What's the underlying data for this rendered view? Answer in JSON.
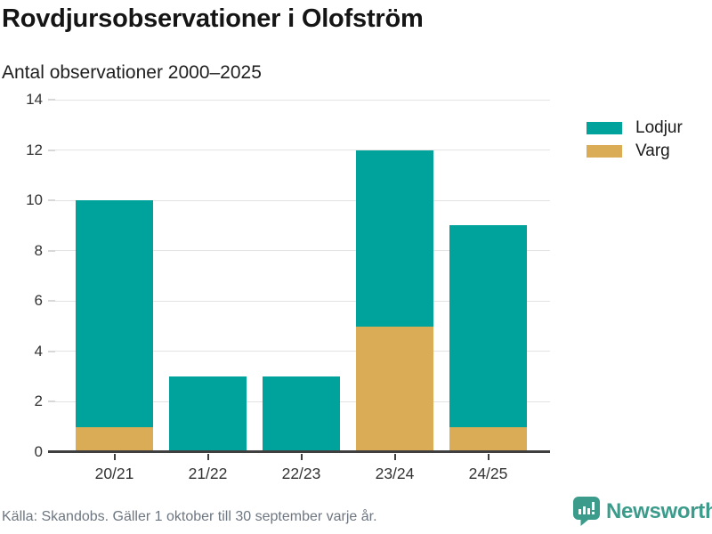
{
  "header": {
    "title": "Rovdjursobservationer i Olofström",
    "subtitle": "Antal observationer 2000–2025"
  },
  "chart_data": {
    "type": "bar",
    "stacked": true,
    "title": "Rovdjursobservationer i Olofström",
    "subtitle": "Antal observationer 2000–2025",
    "categories": [
      "20/21",
      "21/22",
      "22/23",
      "23/24",
      "24/25"
    ],
    "series": [
      {
        "name": "Lodjur",
        "color": "#00a39b",
        "values": [
          9,
          3,
          3,
          7,
          8
        ]
      },
      {
        "name": "Varg",
        "color": "#d9ac55",
        "values": [
          1,
          0,
          0,
          5,
          1
        ]
      }
    ],
    "stack_order_bottom_to_top": [
      "Varg",
      "Lodjur"
    ],
    "totals": [
      10,
      3,
      3,
      12,
      9
    ],
    "xlabel": "",
    "ylabel": "Antal observationer",
    "ylim": [
      0,
      14
    ],
    "yticks": [
      0,
      2,
      4,
      6,
      8,
      10,
      12,
      14
    ],
    "grid": "horizontal",
    "legend_position": "top-right"
  },
  "footer": {
    "source": "Källa: Skandobs. Gäller 1 oktober till 30 september varje år."
  },
  "branding": {
    "wordmark": "Newsworthy",
    "icon": "newsworthy-chart-bubble-icon",
    "color": "#3b9c8c"
  },
  "colors": {
    "lodjur": "#00a39b",
    "varg": "#d9ac55",
    "grid": "#e3e3e3",
    "axis": "#3f3f3f",
    "text": "#1a1a1a",
    "muted_text": "#6e7781"
  }
}
